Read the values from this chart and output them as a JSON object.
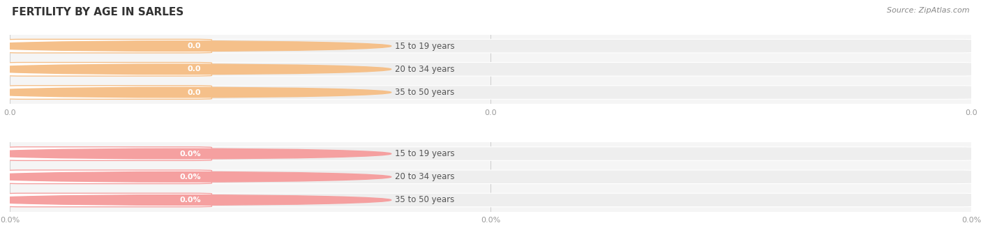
{
  "title": "FERTILITY BY AGE IN SARLES",
  "source": "Source: ZipAtlas.com",
  "top_chart": {
    "categories": [
      "15 to 19 years",
      "20 to 34 years",
      "35 to 50 years"
    ],
    "values": [
      0.0,
      0.0,
      0.0
    ],
    "bar_bg_color": "#eeeeee",
    "label_circle_color": "#f5c08a",
    "value_label_color": "#ffffff",
    "is_percentage": false
  },
  "bottom_chart": {
    "categories": [
      "15 to 19 years",
      "20 to 34 years",
      "35 to 50 years"
    ],
    "values": [
      0.0,
      0.0,
      0.0
    ],
    "bar_bg_color": "#eeeeee",
    "label_circle_color": "#f5a0a0",
    "value_label_color": "#ffffff",
    "is_percentage": true
  },
  "background_color": "#ffffff",
  "row_bg_color": "#f5f5f5",
  "label_text_color": "#555555",
  "bar_height": 0.58,
  "title_fontsize": 11,
  "label_fontsize": 8.5,
  "value_fontsize": 8,
  "tick_fontsize": 8,
  "source_fontsize": 8
}
